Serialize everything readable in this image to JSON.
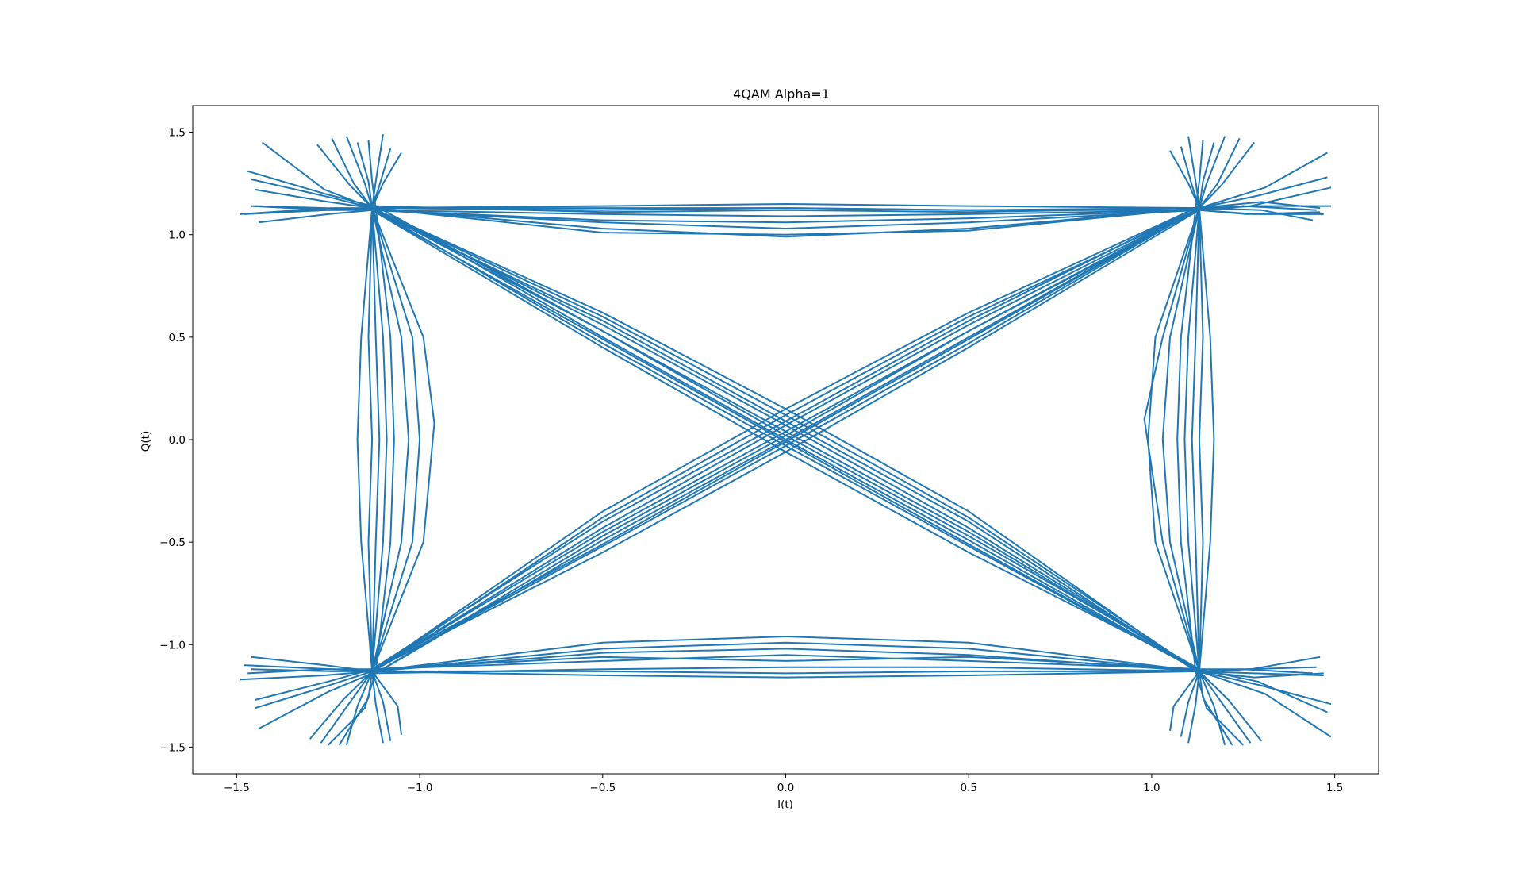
{
  "chart_data": {
    "type": "line",
    "title": "4QAM Alpha=1",
    "xlabel": "I(t)",
    "ylabel": "Q(t)",
    "xlim": [
      -1.62,
      1.62
    ],
    "ylim": [
      -1.63,
      1.63
    ],
    "xticks": [
      -1.5,
      -1.0,
      -0.5,
      0.0,
      0.5,
      1.0,
      1.5
    ],
    "xtick_labels": [
      "−1.5",
      "−1.0",
      "−0.5",
      "0.0",
      "0.5",
      "1.0",
      "1.5"
    ],
    "yticks": [
      -1.5,
      -1.0,
      -0.5,
      0.0,
      0.5,
      1.0,
      1.5
    ],
    "ytick_labels": [
      "−1.5",
      "−1.0",
      "−0.5",
      "0.0",
      "0.5",
      "1.0",
      "1.5"
    ],
    "grid": false,
    "legend": "none",
    "series_color": "#1f77b4",
    "constellation_points": [
      [
        -1.13,
        1.13
      ],
      [
        1.13,
        1.13
      ],
      [
        -1.13,
        -1.13
      ],
      [
        1.13,
        -1.13
      ]
    ],
    "series": [
      {
        "x": [
          -1.48,
          -1.25,
          -1.13,
          -0.5,
          0.0,
          0.5,
          1.13,
          1.3,
          1.46
        ],
        "y": [
          1.1,
          1.12,
          1.13,
          1.14,
          1.15,
          1.14,
          1.13,
          1.16,
          1.13
        ]
      },
      {
        "x": [
          -1.45,
          -1.26,
          -1.13,
          -0.5,
          0.0,
          0.5,
          1.13,
          1.28,
          1.47
        ],
        "y": [
          1.14,
          1.13,
          1.12,
          1.1,
          1.09,
          1.1,
          1.12,
          1.1,
          1.1
        ]
      },
      {
        "x": [
          -1.46,
          -1.24,
          -1.13,
          -0.5,
          0.0,
          0.5,
          1.13,
          1.29,
          1.48
        ],
        "y": [
          1.27,
          1.18,
          1.13,
          1.03,
          0.99,
          1.03,
          1.13,
          1.19,
          1.28
        ]
      },
      {
        "x": [
          -1.44,
          -1.25,
          -1.13,
          -0.5,
          0.0,
          0.5,
          1.13,
          1.27,
          1.49
        ],
        "y": [
          1.06,
          1.1,
          1.12,
          1.06,
          1.03,
          1.06,
          1.12,
          1.14,
          1.23
        ]
      },
      {
        "x": [
          -1.47,
          -1.26,
          -1.13,
          -0.5,
          0.0,
          0.5,
          1.13,
          1.3,
          1.44
        ],
        "y": [
          1.31,
          1.2,
          1.14,
          1.11,
          1.12,
          1.11,
          1.13,
          1.12,
          1.07
        ]
      },
      {
        "x": [
          -1.46,
          -1.25,
          -1.13,
          -0.5,
          0.0,
          0.5,
          1.13,
          1.26,
          1.46
        ],
        "y": [
          1.14,
          1.12,
          1.12,
          1.07,
          1.06,
          1.08,
          1.12,
          1.1,
          1.11
        ]
      },
      {
        "x": [
          -1.43,
          -1.26,
          -1.13,
          -0.5,
          0.0,
          0.5,
          1.13,
          1.31,
          1.48
        ],
        "y": [
          1.45,
          1.22,
          1.13,
          1.12,
          1.13,
          1.12,
          1.13,
          1.23,
          1.4
        ]
      },
      {
        "x": [
          -1.49,
          -1.24,
          -1.13,
          -0.5,
          0.0,
          0.5,
          1.13,
          1.25,
          1.45
        ],
        "y": [
          1.1,
          1.13,
          1.13,
          1.13,
          1.13,
          1.12,
          1.12,
          1.14,
          1.12
        ]
      },
      {
        "x": [
          -1.45,
          -1.25,
          -1.13,
          -0.5,
          0.0,
          0.5,
          1.13,
          1.29,
          1.49
        ],
        "y": [
          1.22,
          1.16,
          1.13,
          1.01,
          1.0,
          1.02,
          1.13,
          1.14,
          1.14
        ]
      },
      {
        "x": [
          -1.46,
          -1.26,
          -1.13,
          -0.5,
          0.0,
          0.5,
          1.13,
          1.28,
          1.47
        ],
        "y": [
          -1.06,
          -1.1,
          -1.13,
          -1.15,
          -1.16,
          -1.15,
          -1.13,
          -1.16,
          -1.14
        ]
      },
      {
        "x": [
          -1.48,
          -1.24,
          -1.13,
          -0.5,
          0.0,
          0.5,
          1.13,
          1.3,
          1.49
        ],
        "y": [
          -1.1,
          -1.12,
          -1.13,
          -0.99,
          -0.96,
          -0.99,
          -1.13,
          -1.2,
          -1.29
        ]
      },
      {
        "x": [
          -1.45,
          -1.25,
          -1.13,
          -0.5,
          0.0,
          0.5,
          1.13,
          1.27,
          1.46
        ],
        "y": [
          -1.31,
          -1.2,
          -1.13,
          -1.02,
          -0.99,
          -1.02,
          -1.13,
          -1.12,
          -1.06
        ]
      },
      {
        "x": [
          -1.47,
          -1.26,
          -1.13,
          -0.5,
          0.0,
          0.5,
          1.13,
          1.29,
          1.48
        ],
        "y": [
          -1.14,
          -1.12,
          -1.12,
          -1.08,
          -1.05,
          -1.08,
          -1.12,
          -1.18,
          -1.33
        ]
      },
      {
        "x": [
          -1.44,
          -1.25,
          -1.13,
          -0.5,
          0.0,
          0.5,
          1.13,
          1.26,
          1.45
        ],
        "y": [
          -1.41,
          -1.23,
          -1.14,
          -1.12,
          -1.11,
          -1.11,
          -1.13,
          -1.12,
          -1.11
        ]
      },
      {
        "x": [
          -1.46,
          -1.24,
          -1.13,
          -0.5,
          0.0,
          0.5,
          1.13,
          1.31,
          1.49
        ],
        "y": [
          -1.12,
          -1.13,
          -1.13,
          -1.13,
          -1.14,
          -1.13,
          -1.13,
          -1.24,
          -1.45
        ]
      },
      {
        "x": [
          -1.49,
          -1.26,
          -1.13,
          -0.5,
          0.0,
          0.5,
          1.13,
          1.28,
          1.47
        ],
        "y": [
          -1.17,
          -1.15,
          -1.13,
          -1.04,
          -1.02,
          -1.05,
          -1.13,
          -1.14,
          -1.15
        ]
      },
      {
        "x": [
          -1.45,
          -1.25,
          -1.13,
          -0.5,
          0.0,
          0.5,
          1.13,
          1.25,
          1.44
        ],
        "y": [
          -1.27,
          -1.18,
          -1.12,
          -1.06,
          -1.08,
          -1.06,
          -1.12,
          -1.12,
          -1.14
        ]
      },
      {
        "x": [
          -1.24,
          -1.18,
          -1.13,
          -1.14,
          -1.13,
          -1.14,
          -1.13,
          -1.17,
          -1.2
        ],
        "y": [
          1.47,
          1.25,
          1.13,
          0.5,
          0.0,
          -0.5,
          -1.13,
          -1.3,
          -1.49
        ]
      },
      {
        "x": [
          -1.1,
          -1.12,
          -1.13,
          -1.05,
          -1.03,
          -1.05,
          -1.13,
          -1.1,
          -1.08
        ],
        "y": [
          1.49,
          1.26,
          1.13,
          0.5,
          0.0,
          -0.5,
          -1.13,
          -1.28,
          -1.47
        ]
      },
      {
        "x": [
          -1.28,
          -1.19,
          -1.13,
          -1.16,
          -1.17,
          -1.16,
          -1.13,
          -1.21,
          -1.3
        ],
        "y": [
          1.44,
          1.24,
          1.13,
          0.5,
          0.0,
          -0.5,
          -1.13,
          -1.27,
          -1.46
        ]
      },
      {
        "x": [
          -1.05,
          -1.1,
          -1.13,
          -0.99,
          -0.96,
          -0.99,
          -1.13,
          -1.12,
          -1.1
        ],
        "y": [
          1.4,
          1.25,
          1.13,
          0.5,
          0.08,
          -0.5,
          -1.13,
          -1.29,
          -1.48
        ]
      },
      {
        "x": [
          -1.14,
          -1.13,
          -1.12,
          -1.08,
          -1.07,
          -1.08,
          -1.12,
          -1.15,
          -1.25
        ],
        "y": [
          1.46,
          1.26,
          1.13,
          0.5,
          0.0,
          -0.5,
          -1.13,
          -1.31,
          -1.49
        ]
      },
      {
        "x": [
          -1.2,
          -1.15,
          -1.13,
          -1.12,
          -1.11,
          -1.12,
          -1.13,
          -1.06,
          -1.05
        ],
        "y": [
          1.48,
          1.25,
          1.13,
          0.5,
          0.0,
          -0.5,
          -1.13,
          -1.3,
          -1.44
        ]
      },
      {
        "x": [
          -1.08,
          -1.11,
          -1.13,
          -1.02,
          -1.0,
          -1.02,
          -1.13,
          -1.14,
          -1.22
        ],
        "y": [
          1.42,
          1.24,
          1.13,
          0.5,
          0.0,
          -0.5,
          -1.13,
          -1.26,
          -1.49
        ]
      },
      {
        "x": [
          -1.17,
          -1.14,
          -1.13,
          -1.1,
          -1.09,
          -1.1,
          -1.13,
          -1.19,
          -1.27
        ],
        "y": [
          1.45,
          1.26,
          1.13,
          0.5,
          0.0,
          -0.5,
          -1.13,
          -1.28,
          -1.48
        ]
      },
      {
        "x": [
          1.24,
          1.18,
          1.13,
          1.14,
          1.13,
          1.14,
          1.13,
          1.17,
          1.2
        ],
        "y": [
          1.47,
          1.25,
          1.13,
          0.5,
          0.0,
          -0.5,
          -1.13,
          -1.3,
          -1.49
        ]
      },
      {
        "x": [
          1.1,
          1.12,
          1.13,
          1.05,
          1.03,
          1.05,
          1.13,
          1.1,
          1.08
        ],
        "y": [
          1.48,
          1.26,
          1.13,
          0.5,
          0.0,
          -0.5,
          -1.13,
          -1.28,
          -1.45
        ]
      },
      {
        "x": [
          1.28,
          1.19,
          1.13,
          1.16,
          1.17,
          1.16,
          1.13,
          1.21,
          1.3
        ],
        "y": [
          1.45,
          1.24,
          1.13,
          0.5,
          0.0,
          -0.5,
          -1.13,
          -1.27,
          -1.47
        ]
      },
      {
        "x": [
          1.05,
          1.1,
          1.13,
          1.03,
          0.98,
          1.03,
          1.13,
          1.12,
          1.1
        ],
        "y": [
          1.41,
          1.25,
          1.13,
          0.5,
          0.1,
          -0.5,
          -1.13,
          -1.29,
          -1.48
        ]
      },
      {
        "x": [
          1.14,
          1.13,
          1.12,
          1.08,
          1.07,
          1.08,
          1.12,
          1.15,
          1.25
        ],
        "y": [
          1.46,
          1.26,
          1.13,
          0.5,
          0.0,
          -0.5,
          -1.13,
          -1.31,
          -1.49
        ]
      },
      {
        "x": [
          1.2,
          1.15,
          1.13,
          1.12,
          1.11,
          1.12,
          1.13,
          1.06,
          1.05
        ],
        "y": [
          1.48,
          1.25,
          1.13,
          0.5,
          0.0,
          -0.5,
          -1.13,
          -1.3,
          -1.42
        ]
      },
      {
        "x": [
          1.08,
          1.11,
          1.13,
          1.01,
          0.99,
          1.01,
          1.13,
          1.14,
          1.22
        ],
        "y": [
          1.43,
          1.24,
          1.13,
          0.5,
          0.0,
          -0.5,
          -1.13,
          -1.26,
          -1.49
        ]
      },
      {
        "x": [
          1.17,
          1.14,
          1.13,
          1.1,
          1.09,
          1.1,
          1.13,
          1.19,
          1.27
        ],
        "y": [
          1.45,
          1.26,
          1.13,
          0.5,
          0.0,
          -0.5,
          -1.13,
          -1.28,
          -1.48
        ]
      },
      {
        "x": [
          -1.13,
          -0.5,
          0.0,
          0.5,
          1.13
        ],
        "y": [
          1.13,
          0.53,
          0.04,
          -0.45,
          -1.13
        ]
      },
      {
        "x": [
          -1.12,
          -0.5,
          0.0,
          0.5,
          1.12
        ],
        "y": [
          1.12,
          0.6,
          0.12,
          -0.38,
          -1.12
        ]
      },
      {
        "x": [
          -1.14,
          -0.5,
          0.0,
          0.5,
          1.14
        ],
        "y": [
          1.14,
          0.47,
          -0.03,
          -0.52,
          -1.14
        ]
      },
      {
        "x": [
          -1.13,
          -0.5,
          0.0,
          0.5,
          1.13
        ],
        "y": [
          1.13,
          0.56,
          0.07,
          -0.43,
          -1.13
        ]
      },
      {
        "x": [
          -1.11,
          -0.5,
          0.0,
          0.5,
          1.12
        ],
        "y": [
          1.13,
          0.5,
          0.0,
          -0.49,
          -1.12
        ]
      },
      {
        "x": [
          -1.13,
          -0.5,
          0.0,
          0.5,
          1.13
        ],
        "y": [
          1.12,
          0.58,
          0.09,
          -0.4,
          -1.14
        ]
      },
      {
        "x": [
          -1.14,
          -0.5,
          0.0,
          0.5,
          1.13
        ],
        "y": [
          1.13,
          0.45,
          -0.06,
          -0.55,
          -1.12
        ]
      },
      {
        "x": [
          -1.12,
          -0.5,
          0.0,
          0.5,
          1.14
        ],
        "y": [
          1.14,
          0.53,
          0.02,
          -0.47,
          -1.13
        ]
      },
      {
        "x": [
          -1.13,
          -0.5,
          0.0,
          0.5,
          1.12
        ],
        "y": [
          1.13,
          0.62,
          0.15,
          -0.35,
          -1.13
        ]
      },
      {
        "x": [
          -1.13,
          -0.5,
          0.0,
          0.5,
          1.13
        ],
        "y": [
          1.12,
          0.49,
          -0.01,
          -0.51,
          -1.13
        ]
      },
      {
        "x": [
          -1.13,
          -0.5,
          0.0,
          0.5,
          1.13
        ],
        "y": [
          -1.13,
          -0.45,
          0.04,
          0.53,
          1.13
        ]
      },
      {
        "x": [
          -1.12,
          -0.5,
          0.0,
          0.5,
          1.12
        ],
        "y": [
          -1.12,
          -0.38,
          0.12,
          0.6,
          1.12
        ]
      },
      {
        "x": [
          -1.14,
          -0.5,
          0.0,
          0.5,
          1.14
        ],
        "y": [
          -1.14,
          -0.52,
          -0.03,
          0.47,
          1.14
        ]
      },
      {
        "x": [
          -1.13,
          -0.5,
          0.0,
          0.5,
          1.13
        ],
        "y": [
          -1.13,
          -0.43,
          0.07,
          0.56,
          1.13
        ]
      },
      {
        "x": [
          -1.11,
          -0.5,
          0.0,
          0.5,
          1.12
        ],
        "y": [
          -1.13,
          -0.49,
          0.0,
          0.5,
          1.12
        ]
      },
      {
        "x": [
          -1.13,
          -0.5,
          0.0,
          0.5,
          1.13
        ],
        "y": [
          -1.12,
          -0.4,
          0.09,
          0.58,
          1.14
        ]
      },
      {
        "x": [
          -1.14,
          -0.5,
          0.0,
          0.5,
          1.13
        ],
        "y": [
          -1.13,
          -0.55,
          -0.06,
          0.45,
          1.12
        ]
      },
      {
        "x": [
          -1.12,
          -0.5,
          0.0,
          0.5,
          1.14
        ],
        "y": [
          -1.14,
          -0.47,
          0.02,
          0.53,
          1.13
        ]
      },
      {
        "x": [
          -1.13,
          -0.5,
          0.0,
          0.5,
          1.12
        ],
        "y": [
          -1.13,
          -0.35,
          0.15,
          0.62,
          1.13
        ]
      },
      {
        "x": [
          -1.13,
          -0.5,
          0.0,
          0.5,
          1.13
        ],
        "y": [
          -1.12,
          -0.51,
          -0.01,
          0.49,
          1.13
        ]
      }
    ]
  }
}
